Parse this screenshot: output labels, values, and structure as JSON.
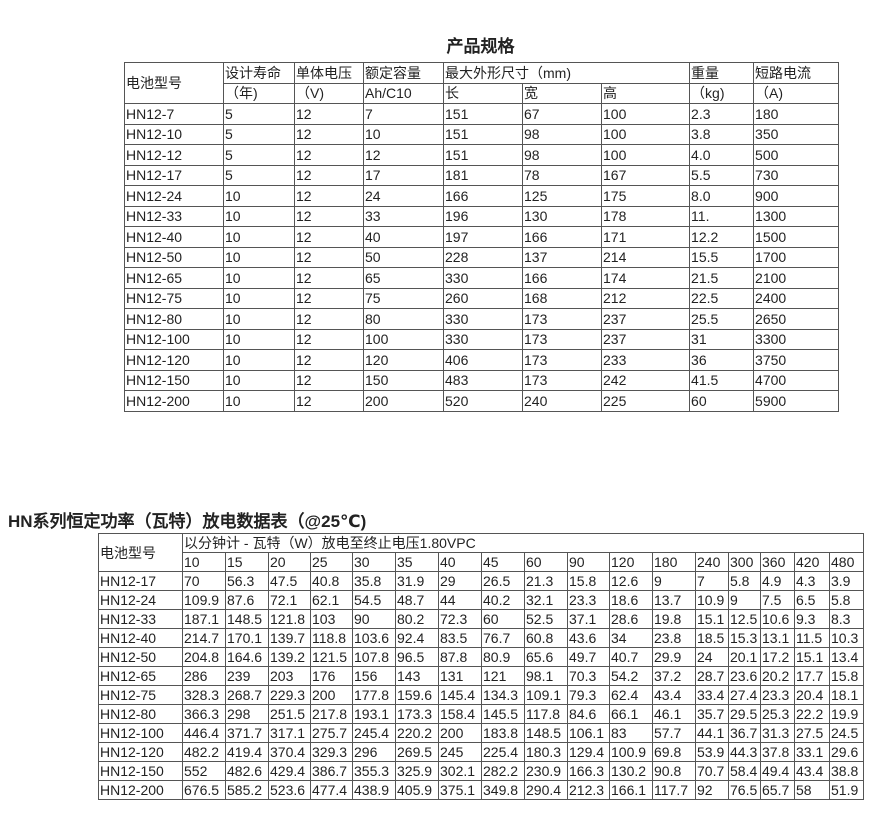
{
  "spec": {
    "title": "产品规格",
    "header": {
      "model": "电池型号",
      "life": "设计寿命",
      "life_unit": "（年)",
      "voltage": "单体电压",
      "voltage_unit": "（V)",
      "capacity": "额定容量",
      "capacity_unit": "Ah/C10",
      "dims": "最大外形尺寸（mm)",
      "length": "长",
      "width": "宽",
      "height": "高",
      "weight": "重量",
      "weight_unit": "（kg)",
      "current": "短路电流",
      "current_unit": "（A)"
    },
    "rows": [
      [
        "HN12-7",
        "5",
        "12",
        "7",
        "151",
        "67",
        "100",
        "2.3",
        "180"
      ],
      [
        "HN12-10",
        "5",
        "12",
        "10",
        "151",
        "98",
        "100",
        "3.8",
        "350"
      ],
      [
        "HN12-12",
        "5",
        "12",
        "12",
        "151",
        "98",
        "100",
        "4.0",
        "500"
      ],
      [
        "HN12-17",
        "5",
        "12",
        "17",
        "181",
        "78",
        "167",
        "5.5",
        "730"
      ],
      [
        "HN12-24",
        "10",
        "12",
        "24",
        "166",
        "125",
        "175",
        "8.0",
        "900"
      ],
      [
        "HN12-33",
        "10",
        "12",
        "33",
        "196",
        "130",
        "178",
        "11.",
        "1300"
      ],
      [
        "HN12-40",
        "10",
        "12",
        "40",
        "197",
        "166",
        "171",
        "12.2",
        "1500"
      ],
      [
        "HN12-50",
        "10",
        "12",
        "50",
        "228",
        "137",
        "214",
        "15.5",
        "1700"
      ],
      [
        "HN12-65",
        "10",
        "12",
        "65",
        "330",
        "166",
        "174",
        "21.5",
        "2100"
      ],
      [
        "HN12-75",
        "10",
        "12",
        "75",
        "260",
        "168",
        "212",
        "22.5",
        "2400"
      ],
      [
        "HN12-80",
        "10",
        "12",
        "80",
        "330",
        "173",
        "237",
        "25.5",
        "2650"
      ],
      [
        "HN12-100",
        "10",
        "12",
        "100",
        "330",
        "173",
        "237",
        "31",
        "3300"
      ],
      [
        "HN12-120",
        "10",
        "12",
        "120",
        "406",
        "173",
        "233",
        "36",
        "3750"
      ],
      [
        "HN12-150",
        "10",
        "12",
        "150",
        "483",
        "173",
        "242",
        "41.5",
        "4700"
      ],
      [
        "HN12-200",
        "10",
        "12",
        "200",
        "520",
        "240",
        "225",
        "60",
        "5900"
      ]
    ]
  },
  "discharge": {
    "title": "HN系列恒定功率（瓦特）放电数据表（@25℃)",
    "model_header": "电池型号",
    "sub_header": "以分钟计 - 瓦特（W）放电至终止电压1.80VPC",
    "minutes": [
      "10",
      "15",
      "20",
      "25",
      "30",
      "35",
      "40",
      "45",
      "60",
      "90",
      "120",
      "180",
      "240",
      "300",
      "360",
      "420",
      "480"
    ],
    "rows": [
      [
        "HN12-17",
        "70",
        "56.3",
        "47.5",
        "40.8",
        "35.8",
        "31.9",
        "29",
        "26.5",
        "21.3",
        "15.8",
        "12.6",
        "9",
        "7",
        "5.8",
        "4.9",
        "4.3",
        "3.9"
      ],
      [
        "HN12-24",
        "109.9",
        "87.6",
        "72.1",
        "62.1",
        "54.5",
        "48.7",
        "44",
        "40.2",
        "32.1",
        "23.3",
        "18.6",
        "13.7",
        "10.9",
        "9",
        "7.5",
        "6.5",
        "5.8"
      ],
      [
        "HN12-33",
        "187.1",
        "148.5",
        "121.8",
        "103",
        "90",
        "80.2",
        "72.3",
        "60",
        "52.5",
        "37.1",
        "28.6",
        "19.8",
        "15.1",
        "12.5",
        "10.6",
        "9.3",
        "8.3"
      ],
      [
        "HN12-40",
        "214.7",
        "170.1",
        "139.7",
        "118.8",
        "103.6",
        "92.4",
        "83.5",
        "76.7",
        "60.8",
        "43.6",
        "34",
        "23.8",
        "18.5",
        "15.3",
        "13.1",
        "11.5",
        "10.3"
      ],
      [
        "HN12-50",
        "204.8",
        "164.6",
        "139.2",
        "121.5",
        "107.8",
        "96.5",
        "87.8",
        "80.9",
        "65.6",
        "49.7",
        "40.7",
        "29.9",
        "24",
        "20.1",
        "17.2",
        "15.1",
        "13.4"
      ],
      [
        "HN12-65",
        "286",
        "239",
        "203",
        "176",
        "156",
        "143",
        "131",
        "121",
        "98.1",
        "70.3",
        "54.2",
        "37.2",
        "28.7",
        "23.6",
        "20.2",
        "17.7",
        "15.8"
      ],
      [
        "HN12-75",
        "328.3",
        "268.7",
        "229.3",
        "200",
        "177.8",
        "159.6",
        "145.4",
        "134.3",
        "109.1",
        "79.3",
        "62.4",
        "43.4",
        "33.4",
        "27.4",
        "23.3",
        "20.4",
        "18.1"
      ],
      [
        "HN12-80",
        "366.3",
        "298",
        "251.5",
        "217.8",
        "193.1",
        "173.3",
        "158.4",
        "145.5",
        "117.8",
        "84.6",
        "66.1",
        "46.1",
        "35.7",
        "29.5",
        "25.3",
        "22.2",
        "19.9"
      ],
      [
        "HN12-100",
        "446.4",
        "371.7",
        "317.1",
        "275.7",
        "245.4",
        "220.2",
        "200",
        "183.8",
        "148.5",
        "106.1",
        "83",
        "57.7",
        "44.1",
        "36.7",
        "31.3",
        "27.5",
        "24.5"
      ],
      [
        "HN12-120",
        "482.2",
        "419.4",
        "370.4",
        "329.3",
        "296",
        "269.5",
        "245",
        "225.4",
        "180.3",
        "129.4",
        "100.9",
        "69.8",
        "53.9",
        "44.3",
        "37.8",
        "33.1",
        "29.6"
      ],
      [
        "HN12-150",
        "552",
        "482.6",
        "429.4",
        "386.7",
        "355.3",
        "325.9",
        "302.1",
        "282.2",
        "230.9",
        "166.3",
        "130.2",
        "90.8",
        "70.7",
        "58.4",
        "49.4",
        "43.4",
        "38.8"
      ],
      [
        "HN12-200",
        "676.5",
        "585.2",
        "523.6",
        "477.4",
        "438.9",
        "405.9",
        "375.1",
        "349.8",
        "290.4",
        "212.3",
        "166.1",
        "117.7",
        "92",
        "76.5",
        "65.7",
        "58",
        "51.9"
      ]
    ]
  }
}
